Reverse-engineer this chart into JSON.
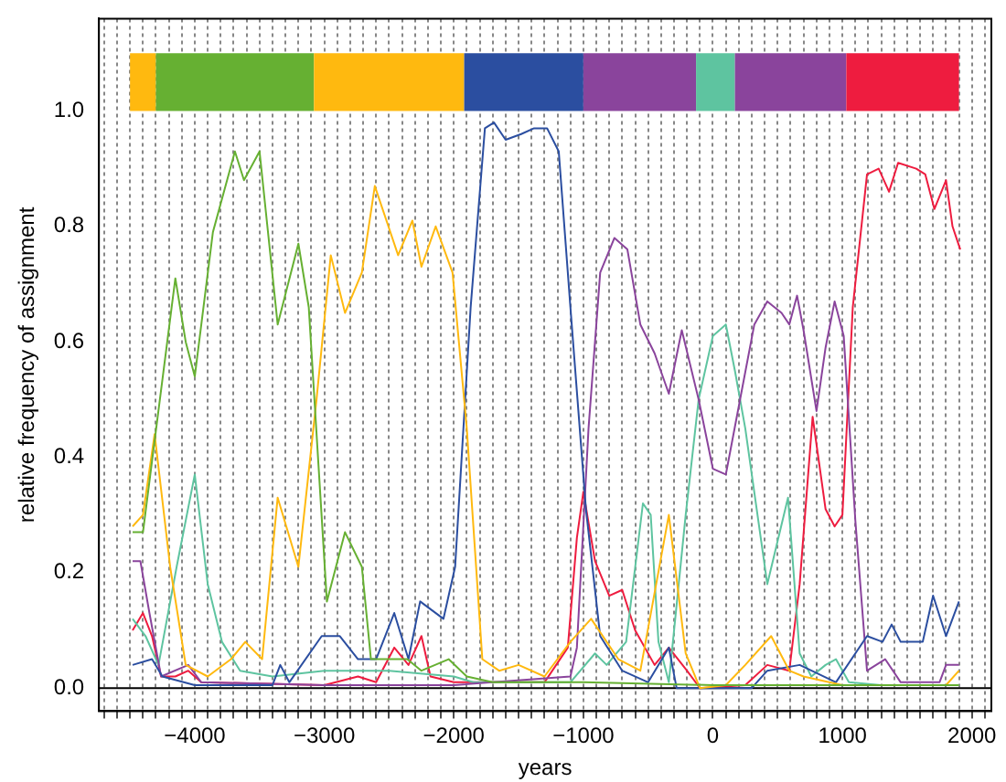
{
  "chart_data": {
    "type": "line",
    "xlabel": "years",
    "ylabel": "relative frequency of assignment",
    "xlim": [
      -4740,
      2150
    ],
    "ylim": [
      -0.04,
      1.16
    ],
    "xticks": [
      {
        "value": -4700,
        "label": null
      },
      {
        "value": -4600,
        "label": null
      },
      {
        "value": -4500,
        "label": null
      },
      {
        "value": -4400,
        "label": null
      },
      {
        "value": -4300,
        "label": null
      },
      {
        "value": -4200,
        "label": null
      },
      {
        "value": -4100,
        "label": null
      },
      {
        "value": -4000,
        "label": "−4000"
      },
      {
        "value": -3900,
        "label": null
      },
      {
        "value": -3800,
        "label": null
      },
      {
        "value": -3700,
        "label": null
      },
      {
        "value": -3600,
        "label": null
      },
      {
        "value": -3500,
        "label": null
      },
      {
        "value": -3400,
        "label": null
      },
      {
        "value": -3300,
        "label": null
      },
      {
        "value": -3200,
        "label": null
      },
      {
        "value": -3100,
        "label": null
      },
      {
        "value": -3000,
        "label": "−3000"
      },
      {
        "value": -2900,
        "label": null
      },
      {
        "value": -2800,
        "label": null
      },
      {
        "value": -2700,
        "label": null
      },
      {
        "value": -2600,
        "label": null
      },
      {
        "value": -2500,
        "label": null
      },
      {
        "value": -2400,
        "label": null
      },
      {
        "value": -2300,
        "label": null
      },
      {
        "value": -2200,
        "label": null
      },
      {
        "value": -2100,
        "label": null
      },
      {
        "value": -2000,
        "label": "−2000"
      },
      {
        "value": -1900,
        "label": null
      },
      {
        "value": -1800,
        "label": null
      },
      {
        "value": -1700,
        "label": null
      },
      {
        "value": -1600,
        "label": null
      },
      {
        "value": -1500,
        "label": null
      },
      {
        "value": -1400,
        "label": null
      },
      {
        "value": -1300,
        "label": null
      },
      {
        "value": -1200,
        "label": null
      },
      {
        "value": -1100,
        "label": null
      },
      {
        "value": -1000,
        "label": "−1000"
      },
      {
        "value": -900,
        "label": null
      },
      {
        "value": -800,
        "label": null
      },
      {
        "value": -700,
        "label": null
      },
      {
        "value": -600,
        "label": null
      },
      {
        "value": -500,
        "label": null
      },
      {
        "value": -400,
        "label": null
      },
      {
        "value": -300,
        "label": null
      },
      {
        "value": -200,
        "label": null
      },
      {
        "value": -100,
        "label": null
      },
      0,
      {
        "value": 100,
        "label": null
      },
      {
        "value": 200,
        "label": null
      },
      {
        "value": 300,
        "label": null
      },
      {
        "value": 400,
        "label": null
      },
      {
        "value": 500,
        "label": null
      },
      {
        "value": 600,
        "label": null
      },
      {
        "value": 700,
        "label": null
      },
      {
        "value": 800,
        "label": null
      },
      {
        "value": 900,
        "label": null
      },
      1000,
      {
        "value": 1100,
        "label": null
      },
      {
        "value": 1200,
        "label": null
      },
      {
        "value": 1300,
        "label": null
      },
      {
        "value": 1400,
        "label": null
      },
      {
        "value": 1500,
        "label": null
      },
      {
        "value": 1600,
        "label": null
      },
      {
        "value": 1700,
        "label": null
      },
      {
        "value": 1800,
        "label": null
      },
      {
        "value": 1900,
        "label": null
      },
      2000,
      {
        "value": 2100,
        "label": null
      }
    ],
    "yticks": [
      {
        "value": 0,
        "label": "0.0"
      },
      {
        "value": 0.2,
        "label": "0.2"
      },
      {
        "value": 0.4,
        "label": "0.4"
      },
      {
        "value": 0.6,
        "label": "0.6"
      },
      {
        "value": 0.8,
        "label": "0.8"
      },
      {
        "value": 1,
        "label": "1.0"
      }
    ],
    "grid": "x",
    "legend": false,
    "marker": "none",
    "line_style": "solid",
    "ref_lines": [
      {
        "axis": "y",
        "value": 0,
        "color": "#000000",
        "line_style": "solid"
      }
    ],
    "bands": [
      {
        "axis": "x",
        "from": -4500,
        "to": -4300,
        "color": "#ffb90f"
      },
      {
        "axis": "x",
        "from": -4300,
        "to": -3080,
        "color": "#66b032"
      },
      {
        "axis": "x",
        "from": -3080,
        "to": -1920,
        "color": "#ffb90f"
      },
      {
        "axis": "x",
        "from": -1920,
        "to": -1000,
        "color": "#2b4ea0"
      },
      {
        "axis": "x",
        "from": -1000,
        "to": -130,
        "color": "#8a449c"
      },
      {
        "axis": "x",
        "from": -130,
        "to": 170,
        "color": "#5ec4a0"
      },
      {
        "axis": "x",
        "from": 170,
        "to": 1030,
        "color": "#8a449c"
      },
      {
        "axis": "x",
        "from": 1030,
        "to": 1900,
        "color": "#ee1c3f"
      }
    ],
    "series": [
      {
        "color": "#66b032",
        "x": [
          -4480,
          -4400,
          -4150,
          -4070,
          -4000,
          -3860,
          -3690,
          -3620,
          -3500,
          -3360,
          -3200,
          -3120,
          -2980,
          -2840,
          -2710,
          -2640,
          -2500,
          -2360,
          -2250,
          -2040,
          -1900,
          -1700,
          -1000,
          0,
          1000,
          1900
        ],
        "values": [
          0.27,
          0.27,
          0.71,
          0.6,
          0.54,
          0.79,
          0.93,
          0.88,
          0.93,
          0.63,
          0.77,
          0.66,
          0.15,
          0.27,
          0.21,
          0.05,
          0.05,
          0.05,
          0.03,
          0.05,
          0.02,
          0.01,
          0.01,
          0.005,
          0.005,
          0.005
        ]
      },
      {
        "color": "#ffb90f",
        "x": [
          -4480,
          -4400,
          -4310,
          -4190,
          -4070,
          -3900,
          -3720,
          -3610,
          -3480,
          -3360,
          -3200,
          -3060,
          -2950,
          -2840,
          -2710,
          -2610,
          -2430,
          -2320,
          -2250,
          -2140,
          -2010,
          -1900,
          -1780,
          -1650,
          -1500,
          -1300,
          -1100,
          -940,
          -730,
          -560,
          -340,
          -210,
          -100,
          100,
          250,
          450,
          590,
          700,
          1000,
          1500,
          1800,
          1900
        ],
        "values": [
          0.28,
          0.3,
          0.44,
          0.21,
          0.04,
          0.02,
          0.05,
          0.08,
          0.05,
          0.33,
          0.21,
          0.5,
          0.75,
          0.65,
          0.72,
          0.87,
          0.75,
          0.81,
          0.73,
          0.8,
          0.72,
          0.45,
          0.05,
          0.03,
          0.04,
          0.02,
          0.08,
          0.12,
          0.05,
          0.03,
          0.3,
          0.06,
          0,
          0.005,
          0.04,
          0.09,
          0.03,
          0.02,
          0.005,
          0.005,
          0.005,
          0.03
        ]
      },
      {
        "color": "#2b4ea0",
        "x": [
          -4480,
          -4330,
          -4250,
          -4000,
          -3400,
          -3340,
          -3270,
          -3020,
          -2880,
          -2740,
          -2600,
          -2460,
          -2350,
          -2260,
          -2080,
          -1990,
          -1870,
          -1760,
          -1690,
          -1600,
          -1480,
          -1380,
          -1280,
          -1190,
          -1100,
          -980,
          -870,
          -700,
          -500,
          -340,
          -280,
          300,
          420,
          670,
          950,
          1190,
          1310,
          1380,
          1450,
          1620,
          1700,
          1800,
          1900
        ],
        "values": [
          0.04,
          0.05,
          0.02,
          0.005,
          0.005,
          0.04,
          0.01,
          0.09,
          0.09,
          0.05,
          0.05,
          0.13,
          0.05,
          0.15,
          0.12,
          0.21,
          0.66,
          0.97,
          0.98,
          0.95,
          0.96,
          0.97,
          0.97,
          0.93,
          0.66,
          0.31,
          0.09,
          0.03,
          0.01,
          0.07,
          0,
          0,
          0.03,
          0.04,
          0.01,
          0.09,
          0.08,
          0.11,
          0.08,
          0.08,
          0.16,
          0.09,
          0.15
        ]
      },
      {
        "color": "#8a449c",
        "x": [
          -4480,
          -4420,
          -4350,
          -4260,
          -4050,
          -3950,
          -3000,
          -2000,
          -1100,
          -1050,
          -960,
          -870,
          -760,
          -660,
          -560,
          -450,
          -340,
          -240,
          -110,
          0,
          100,
          210,
          320,
          420,
          530,
          590,
          650,
          700,
          800,
          870,
          940,
          1010,
          1100,
          1190,
          1330,
          1450,
          1750,
          1800,
          1900
        ],
        "values": [
          0.22,
          0.22,
          0.13,
          0.02,
          0.04,
          0.01,
          0.005,
          0.005,
          0.02,
          0.07,
          0.45,
          0.72,
          0.78,
          0.76,
          0.63,
          0.58,
          0.51,
          0.62,
          0.5,
          0.38,
          0.37,
          0.5,
          0.63,
          0.67,
          0.65,
          0.63,
          0.68,
          0.62,
          0.48,
          0.59,
          0.67,
          0.61,
          0.29,
          0.03,
          0.05,
          0.01,
          0.01,
          0.04,
          0.04
        ]
      },
      {
        "color": "#5ec4a0",
        "x": [
          -4480,
          -4380,
          -4280,
          -4140,
          -4000,
          -3900,
          -3790,
          -3650,
          -3400,
          -3000,
          -2500,
          -2000,
          -1850,
          -1100,
          -910,
          -820,
          -670,
          -540,
          -480,
          -420,
          -340,
          -210,
          -110,
          0,
          100,
          170,
          250,
          420,
          580,
          670,
          760,
          870,
          950,
          1050,
          1300,
          1900
        ],
        "values": [
          0.12,
          0.09,
          0.04,
          0.21,
          0.37,
          0.18,
          0.08,
          0.03,
          0.02,
          0.03,
          0.03,
          0.02,
          0.01,
          0.01,
          0.06,
          0.04,
          0.08,
          0.32,
          0.3,
          0.08,
          0.01,
          0.3,
          0.5,
          0.61,
          0.63,
          0.55,
          0.45,
          0.18,
          0.33,
          0.06,
          0.02,
          0.04,
          0.05,
          0.01,
          0.005,
          0.005
        ]
      },
      {
        "color": "#ee1c3f",
        "x": [
          -4480,
          -4400,
          -4330,
          -4260,
          -4150,
          -4050,
          -3950,
          -3000,
          -2740,
          -2600,
          -2460,
          -2350,
          -2250,
          -2180,
          -2000,
          -1300,
          -1120,
          -1050,
          -1000,
          -910,
          -800,
          -700,
          -600,
          -450,
          -340,
          -200,
          -100,
          250,
          420,
          590,
          670,
          770,
          870,
          940,
          1000,
          1080,
          1190,
          1280,
          1360,
          1430,
          1570,
          1640,
          1710,
          1800,
          1850,
          1910
        ],
        "values": [
          0.1,
          0.13,
          0.09,
          0.02,
          0.02,
          0.03,
          0.01,
          0.005,
          0.02,
          0.01,
          0.07,
          0.04,
          0.09,
          0.02,
          0.01,
          0.01,
          0.07,
          0.26,
          0.34,
          0.22,
          0.16,
          0.17,
          0.1,
          0.04,
          0.07,
          0.03,
          0,
          0.005,
          0.04,
          0.03,
          0.18,
          0.47,
          0.31,
          0.28,
          0.3,
          0.66,
          0.89,
          0.9,
          0.86,
          0.91,
          0.9,
          0.89,
          0.83,
          0.88,
          0.8,
          0.76
        ]
      }
    ]
  }
}
